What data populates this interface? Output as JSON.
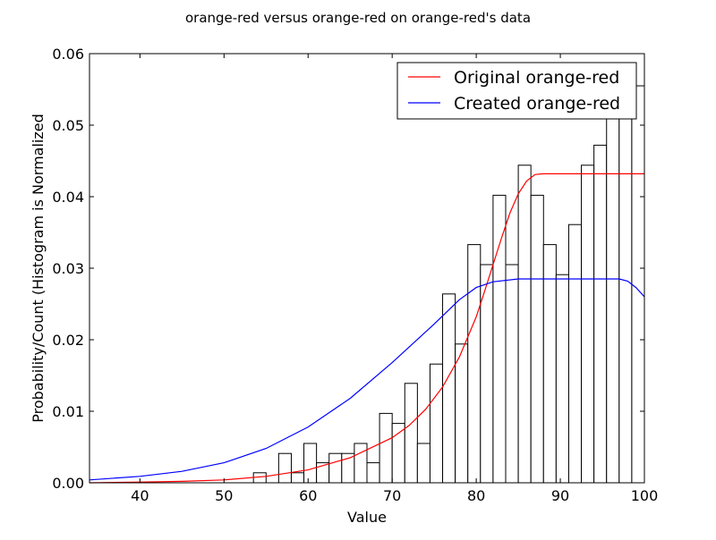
{
  "chart_data": {
    "type": "bar",
    "title": "orange-red versus orange-red on orange-red's data",
    "xlabel": "Value",
    "ylabel": "Probability/Count (Histogram is Normalized",
    "xlim": [
      34,
      100
    ],
    "ylim": [
      0,
      0.06
    ],
    "xticks": [
      "40",
      "50",
      "60",
      "70",
      "80",
      "90",
      "100"
    ],
    "yticks": [
      "0.00",
      "0.01",
      "0.02",
      "0.03",
      "0.04",
      "0.05",
      "0.06"
    ],
    "grid": false,
    "legend_position": "top-right",
    "histogram": {
      "bin_width": 1.5,
      "bin_starts": [
        34.0,
        35.5,
        37.0,
        38.5,
        40.0,
        41.5,
        43.0,
        44.5,
        46.0,
        47.5,
        49.0,
        50.5,
        52.0,
        53.5,
        55.0,
        56.5,
        58.0,
        59.5,
        61.0,
        62.5,
        64.0,
        65.5,
        67.0,
        68.5,
        70.0,
        71.5,
        73.0,
        74.5,
        76.0,
        77.5,
        79.0,
        80.5,
        82.0,
        83.5,
        85.0,
        86.5,
        88.0,
        89.5,
        91.0,
        92.5,
        94.0,
        95.5,
        97.0,
        98.5
      ],
      "values": [
        0,
        0,
        0,
        0,
        0,
        0,
        0,
        0,
        0,
        0,
        0,
        0,
        0,
        0.0014,
        0,
        0.0041,
        0.0014,
        0.0055,
        0.0028,
        0.0041,
        0.0041,
        0.0055,
        0.0028,
        0.0097,
        0.0083,
        0.0139,
        0.0055,
        0.0166,
        0.0264,
        0.0194,
        0.0333,
        0.0305,
        0.0402,
        0.0305,
        0.0444,
        0.0402,
        0.0333,
        0.0291,
        0.0361,
        0.0444,
        0.0472,
        0.0513,
        0.0555,
        0.0555
      ],
      "stroke": "#000000",
      "fill": "#ffffff"
    },
    "series": [
      {
        "name": "Original orange-red",
        "color": "#ff0000",
        "x": [
          34,
          40,
          45,
          50,
          55,
          60,
          65,
          70,
          72,
          74,
          76,
          78,
          80,
          81,
          82,
          83,
          84,
          85,
          86,
          87,
          88,
          90,
          95,
          100
        ],
        "y": [
          0.0,
          0.0001,
          0.0002,
          0.0004,
          0.0009,
          0.0018,
          0.0035,
          0.0063,
          0.008,
          0.0103,
          0.0134,
          0.0176,
          0.0232,
          0.0268,
          0.0305,
          0.0342,
          0.0377,
          0.0404,
          0.0422,
          0.0431,
          0.0432,
          0.0432,
          0.0432,
          0.0432
        ]
      },
      {
        "name": "Created orange-red",
        "color": "#0000ff",
        "x": [
          34,
          40,
          45,
          50,
          55,
          60,
          65,
          70,
          75,
          78,
          80,
          82,
          85,
          88,
          90,
          95,
          97,
          98,
          99,
          100
        ],
        "y": [
          0.0004,
          0.0009,
          0.0016,
          0.0028,
          0.0048,
          0.0078,
          0.0118,
          0.0168,
          0.0222,
          0.0256,
          0.0273,
          0.0281,
          0.0285,
          0.0285,
          0.0285,
          0.0285,
          0.0285,
          0.0282,
          0.0273,
          0.026
        ]
      }
    ]
  }
}
